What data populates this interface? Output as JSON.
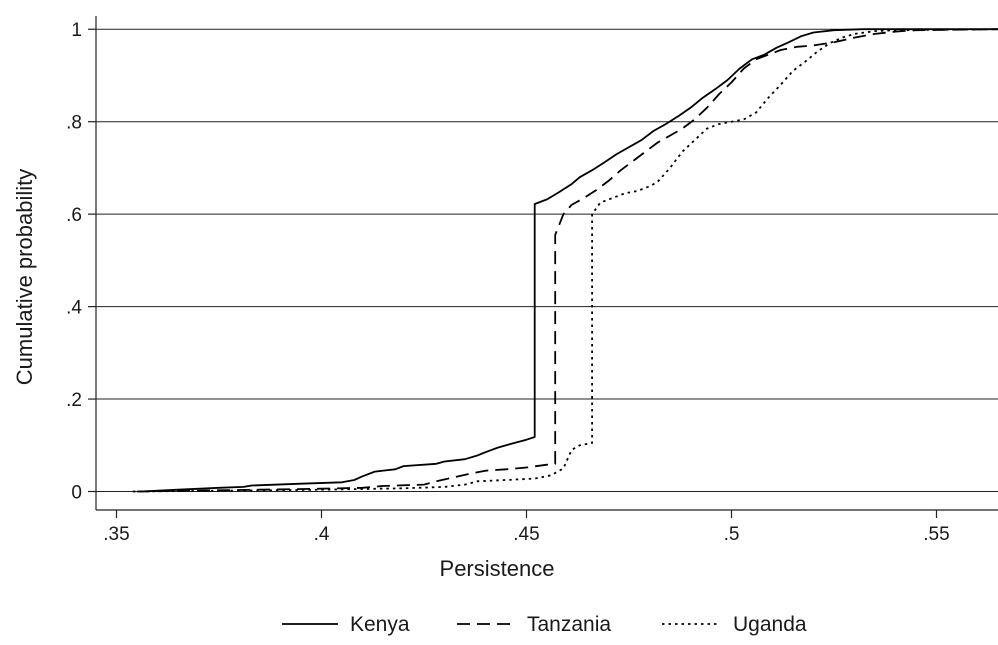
{
  "chart_data": {
    "type": "line",
    "title": "",
    "xlabel": "Persistence",
    "ylabel": "Cumulative probability",
    "xlim": [
      0.345,
      0.565
    ],
    "ylim": [
      -0.04,
      1.02
    ],
    "x_ticks": [
      {
        "value": 0.35,
        "label": ".35"
      },
      {
        "value": 0.4,
        "label": ".4"
      },
      {
        "value": 0.45,
        "label": ".45"
      },
      {
        "value": 0.5,
        "label": ".5"
      },
      {
        "value": 0.55,
        "label": ".55"
      }
    ],
    "y_ticks": [
      {
        "value": 0,
        "label": "0"
      },
      {
        "value": 0.2,
        "label": ".2"
      },
      {
        "value": 0.4,
        "label": ".4"
      },
      {
        "value": 0.6,
        "label": ".6"
      },
      {
        "value": 0.8,
        "label": ".8"
      },
      {
        "value": 1,
        "label": "1"
      }
    ],
    "grid": "horizontal",
    "legend_position": "bottom",
    "series": [
      {
        "name": "Kenya",
        "dash": "solid",
        "color": "#000000",
        "points": [
          [
            0.356,
            0.0
          ],
          [
            0.365,
            0.004
          ],
          [
            0.375,
            0.008
          ],
          [
            0.381,
            0.01
          ],
          [
            0.383,
            0.013
          ],
          [
            0.395,
            0.017
          ],
          [
            0.405,
            0.02
          ],
          [
            0.408,
            0.025
          ],
          [
            0.41,
            0.033
          ],
          [
            0.413,
            0.043
          ],
          [
            0.418,
            0.048
          ],
          [
            0.42,
            0.055
          ],
          [
            0.428,
            0.06
          ],
          [
            0.43,
            0.065
          ],
          [
            0.435,
            0.07
          ],
          [
            0.438,
            0.078
          ],
          [
            0.44,
            0.085
          ],
          [
            0.443,
            0.095
          ],
          [
            0.447,
            0.105
          ],
          [
            0.45,
            0.112
          ],
          [
            0.452,
            0.118
          ],
          [
            0.452,
            0.622
          ],
          [
            0.455,
            0.632
          ],
          [
            0.458,
            0.648
          ],
          [
            0.461,
            0.665
          ],
          [
            0.463,
            0.68
          ],
          [
            0.466,
            0.695
          ],
          [
            0.469,
            0.712
          ],
          [
            0.472,
            0.73
          ],
          [
            0.475,
            0.745
          ],
          [
            0.478,
            0.76
          ],
          [
            0.481,
            0.78
          ],
          [
            0.484,
            0.795
          ],
          [
            0.487,
            0.812
          ],
          [
            0.49,
            0.83
          ],
          [
            0.493,
            0.852
          ],
          [
            0.496,
            0.87
          ],
          [
            0.499,
            0.89
          ],
          [
            0.502,
            0.915
          ],
          [
            0.505,
            0.935
          ],
          [
            0.508,
            0.945
          ],
          [
            0.511,
            0.96
          ],
          [
            0.514,
            0.972
          ],
          [
            0.517,
            0.985
          ],
          [
            0.52,
            0.993
          ],
          [
            0.525,
            0.998
          ],
          [
            0.532,
            1.0
          ],
          [
            0.565,
            1.0
          ]
        ]
      },
      {
        "name": "Tanzania",
        "dash": "dashed",
        "color": "#000000",
        "points": [
          [
            0.355,
            0.0
          ],
          [
            0.37,
            0.002
          ],
          [
            0.385,
            0.004
          ],
          [
            0.4,
            0.006
          ],
          [
            0.41,
            0.008
          ],
          [
            0.415,
            0.012
          ],
          [
            0.425,
            0.015
          ],
          [
            0.428,
            0.022
          ],
          [
            0.432,
            0.03
          ],
          [
            0.436,
            0.038
          ],
          [
            0.44,
            0.045
          ],
          [
            0.445,
            0.048
          ],
          [
            0.45,
            0.052
          ],
          [
            0.455,
            0.058
          ],
          [
            0.457,
            0.06
          ],
          [
            0.457,
            0.555
          ],
          [
            0.459,
            0.6
          ],
          [
            0.461,
            0.62
          ],
          [
            0.464,
            0.635
          ],
          [
            0.467,
            0.652
          ],
          [
            0.47,
            0.672
          ],
          [
            0.473,
            0.695
          ],
          [
            0.476,
            0.715
          ],
          [
            0.479,
            0.735
          ],
          [
            0.482,
            0.755
          ],
          [
            0.485,
            0.77
          ],
          [
            0.488,
            0.785
          ],
          [
            0.491,
            0.805
          ],
          [
            0.494,
            0.83
          ],
          [
            0.497,
            0.86
          ],
          [
            0.5,
            0.885
          ],
          [
            0.503,
            0.915
          ],
          [
            0.506,
            0.935
          ],
          [
            0.509,
            0.945
          ],
          [
            0.512,
            0.955
          ],
          [
            0.516,
            0.962
          ],
          [
            0.52,
            0.965
          ],
          [
            0.525,
            0.972
          ],
          [
            0.53,
            0.982
          ],
          [
            0.535,
            0.99
          ],
          [
            0.54,
            0.995
          ],
          [
            0.545,
            0.998
          ],
          [
            0.565,
            1.0
          ]
        ]
      },
      {
        "name": "Uganda",
        "dash": "dotted",
        "color": "#000000",
        "points": [
          [
            0.354,
            0.0
          ],
          [
            0.38,
            0.002
          ],
          [
            0.4,
            0.004
          ],
          [
            0.42,
            0.007
          ],
          [
            0.43,
            0.01
          ],
          [
            0.435,
            0.015
          ],
          [
            0.438,
            0.022
          ],
          [
            0.445,
            0.025
          ],
          [
            0.452,
            0.028
          ],
          [
            0.456,
            0.035
          ],
          [
            0.459,
            0.05
          ],
          [
            0.461,
            0.09
          ],
          [
            0.463,
            0.1
          ],
          [
            0.466,
            0.105
          ],
          [
            0.466,
            0.6
          ],
          [
            0.468,
            0.625
          ],
          [
            0.471,
            0.635
          ],
          [
            0.474,
            0.645
          ],
          [
            0.477,
            0.65
          ],
          [
            0.48,
            0.66
          ],
          [
            0.482,
            0.67
          ],
          [
            0.485,
            0.7
          ],
          [
            0.488,
            0.735
          ],
          [
            0.491,
            0.76
          ],
          [
            0.494,
            0.785
          ],
          [
            0.497,
            0.795
          ],
          [
            0.5,
            0.8
          ],
          [
            0.503,
            0.805
          ],
          [
            0.506,
            0.82
          ],
          [
            0.509,
            0.852
          ],
          [
            0.512,
            0.88
          ],
          [
            0.515,
            0.91
          ],
          [
            0.518,
            0.93
          ],
          [
            0.521,
            0.952
          ],
          [
            0.524,
            0.97
          ],
          [
            0.527,
            0.982
          ],
          [
            0.53,
            0.99
          ],
          [
            0.535,
            0.996
          ],
          [
            0.54,
            0.998
          ],
          [
            0.565,
            1.0
          ]
        ]
      }
    ]
  }
}
